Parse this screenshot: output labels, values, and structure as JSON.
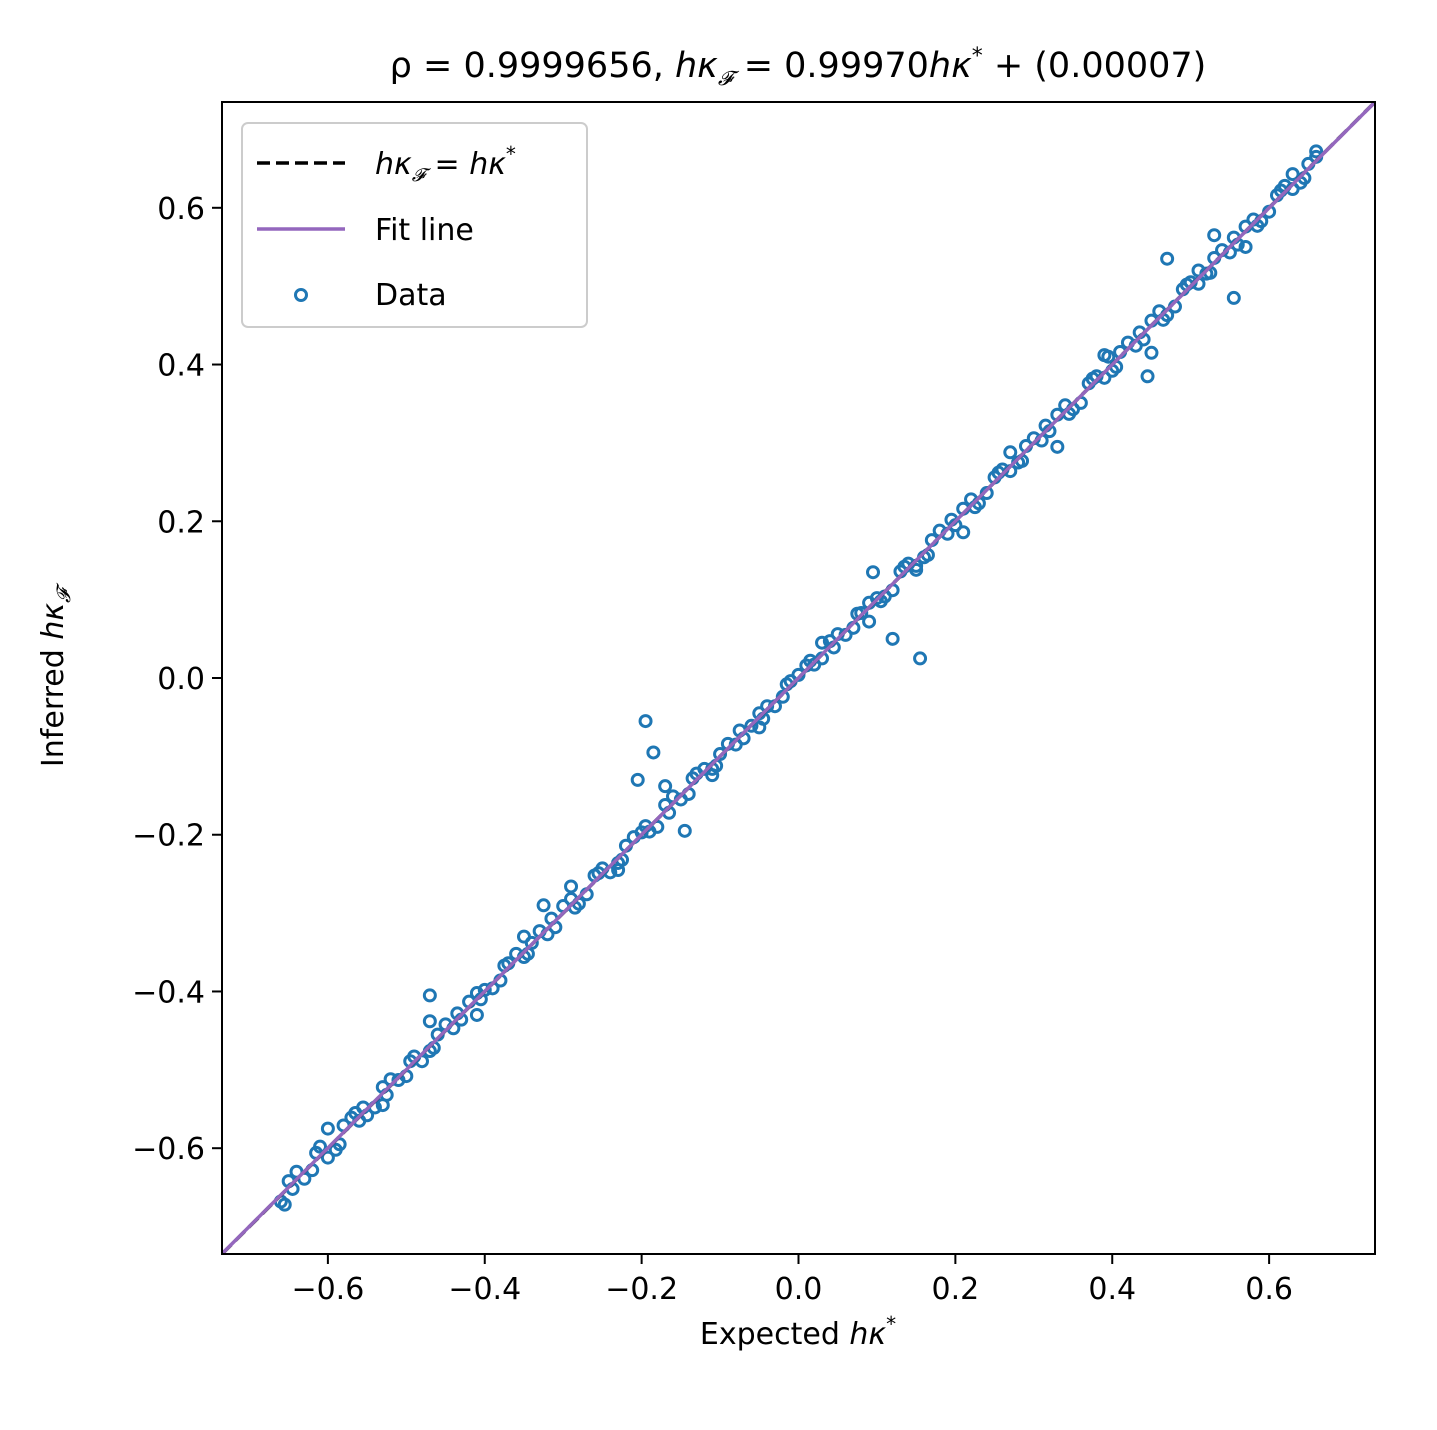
{
  "chart_data": {
    "type": "scatter",
    "title": {
      "prefix": "ρ = 0.9999656,   ",
      "lhs": "hκ",
      "lhs_sub": "𝓕",
      "mid": " = 0.99970",
      "rhs": "hκ",
      "rhs_sup": "*",
      "suffix": " + (0.00007)"
    },
    "xlabel": {
      "text": "Expected ",
      "math": "hκ",
      "sup": "*"
    },
    "ylabel": {
      "text": "Inferred ",
      "math": "hκ",
      "sub": "𝓕"
    },
    "xlim": [
      -0.735,
      0.735
    ],
    "ylim": [
      -0.735,
      0.735
    ],
    "xticks": [
      -0.6,
      -0.4,
      -0.2,
      0.0,
      0.2,
      0.4,
      0.6
    ],
    "xtick_labels": [
      "−0.6",
      "−0.4",
      "−0.2",
      "0.0",
      "0.2",
      "0.4",
      "0.6"
    ],
    "yticks": [
      -0.6,
      -0.4,
      -0.2,
      0.0,
      0.2,
      0.4,
      0.6
    ],
    "ytick_labels": [
      "−0.6",
      "−0.4",
      "−0.2",
      "0.0",
      "0.2",
      "0.4",
      "0.6"
    ],
    "grid": false,
    "legend_position": "upper-left",
    "series": [
      {
        "name": "hκ𝓕 = hκ*",
        "kind": "line",
        "style": "dashed",
        "color": "#000000",
        "x": [
          -0.735,
          0.735
        ],
        "y": [
          -0.735,
          0.735
        ]
      },
      {
        "name": "Fit line",
        "kind": "line",
        "style": "solid",
        "color": "#9467bd",
        "slope": 0.9997,
        "intercept": 7e-05,
        "x": [
          -0.735,
          0.735
        ],
        "y": [
          -0.73471,
          0.73485
        ]
      },
      {
        "name": "Data",
        "kind": "scatter",
        "marker": "open-circle",
        "color": "#1f77b4",
        "x": [
          -0.655,
          -0.64,
          -0.62,
          -0.6,
          -0.58,
          -0.56,
          -0.54,
          -0.52,
          -0.5,
          -0.48,
          -0.46,
          -0.44,
          -0.42,
          -0.4,
          -0.38,
          -0.36,
          -0.34,
          -0.32,
          -0.3,
          -0.28,
          -0.26,
          -0.24,
          -0.22,
          -0.2,
          -0.18,
          -0.16,
          -0.14,
          -0.12,
          -0.1,
          -0.08,
          -0.06,
          -0.04,
          -0.02,
          0.0,
          0.02,
          0.04,
          0.06,
          0.08,
          0.1,
          0.12,
          0.14,
          0.16,
          0.18,
          0.2,
          0.22,
          0.24,
          0.26,
          0.28,
          0.3,
          0.32,
          0.34,
          0.36,
          0.38,
          0.4,
          0.42,
          0.44,
          0.46,
          0.48,
          0.5,
          0.52,
          0.54,
          0.56,
          0.58,
          0.6,
          0.62,
          0.64,
          0.66,
          -0.65,
          -0.63,
          -0.61,
          -0.59,
          -0.57,
          -0.55,
          -0.53,
          -0.51,
          -0.49,
          -0.47,
          -0.45,
          -0.43,
          -0.41,
          -0.39,
          -0.37,
          -0.35,
          -0.33,
          -0.31,
          -0.29,
          -0.27,
          -0.25,
          -0.23,
          -0.21,
          -0.19,
          -0.17,
          -0.15,
          -0.13,
          -0.11,
          -0.09,
          -0.07,
          -0.05,
          -0.03,
          -0.01,
          0.01,
          0.03,
          0.05,
          0.07,
          0.09,
          0.11,
          0.13,
          0.15,
          0.17,
          0.19,
          0.21,
          0.23,
          0.25,
          0.27,
          0.29,
          0.31,
          0.33,
          0.35,
          0.37,
          0.39,
          0.41,
          0.43,
          0.45,
          0.47,
          0.49,
          0.51,
          0.53,
          0.55,
          0.57,
          0.59,
          0.61,
          0.63,
          0.65,
          -0.645,
          -0.615,
          -0.585,
          -0.555,
          -0.525,
          -0.495,
          -0.465,
          -0.435,
          -0.405,
          -0.375,
          -0.345,
          -0.315,
          -0.285,
          -0.255,
          -0.225,
          -0.195,
          -0.165,
          -0.135,
          -0.105,
          -0.075,
          -0.045,
          -0.015,
          0.015,
          0.045,
          0.075,
          0.105,
          0.135,
          0.165,
          0.195,
          0.225,
          0.255,
          0.285,
          0.315,
          0.345,
          0.375,
          0.405,
          0.435,
          0.465,
          0.495,
          0.525,
          0.555,
          0.585,
          0.615,
          0.645,
          -0.66,
          -0.6,
          -0.53,
          -0.47,
          -0.41,
          -0.35,
          -0.29,
          -0.23,
          -0.17,
          -0.11,
          -0.05,
          0.03,
          0.09,
          0.15,
          0.21,
          0.27,
          0.33,
          0.39,
          0.45,
          0.51,
          0.57,
          0.63,
          0.66,
          0.155,
          0.445,
          0.555,
          0.095,
          -0.195,
          -0.185,
          -0.205,
          -0.47,
          -0.325,
          -0.565,
          0.395,
          0.53,
          0.47,
          0.12,
          -0.145
        ],
        "y": [
          -0.672,
          -0.63,
          -0.628,
          -0.612,
          -0.571,
          -0.565,
          -0.548,
          -0.512,
          -0.508,
          -0.489,
          -0.455,
          -0.447,
          -0.413,
          -0.398,
          -0.386,
          -0.352,
          -0.338,
          -0.327,
          -0.291,
          -0.288,
          -0.252,
          -0.248,
          -0.214,
          -0.197,
          -0.19,
          -0.151,
          -0.148,
          -0.116,
          -0.097,
          -0.085,
          -0.061,
          -0.036,
          -0.024,
          0.004,
          0.017,
          0.047,
          0.055,
          0.083,
          0.102,
          0.112,
          0.146,
          0.154,
          0.188,
          0.195,
          0.228,
          0.236,
          0.266,
          0.275,
          0.306,
          0.315,
          0.348,
          0.351,
          0.385,
          0.392,
          0.428,
          0.432,
          0.468,
          0.474,
          0.505,
          0.516,
          0.546,
          0.553,
          0.585,
          0.595,
          0.628,
          0.632,
          0.665,
          -0.642,
          -0.639,
          -0.598,
          -0.602,
          -0.561,
          -0.558,
          -0.522,
          -0.513,
          -0.483,
          -0.476,
          -0.442,
          -0.436,
          -0.402,
          -0.396,
          -0.364,
          -0.356,
          -0.323,
          -0.318,
          -0.282,
          -0.276,
          -0.243,
          -0.236,
          -0.203,
          -0.196,
          -0.162,
          -0.155,
          -0.122,
          -0.116,
          -0.084,
          -0.077,
          -0.045,
          -0.036,
          -0.004,
          0.016,
          0.025,
          0.056,
          0.064,
          0.096,
          0.104,
          0.136,
          0.143,
          0.176,
          0.184,
          0.216,
          0.223,
          0.256,
          0.264,
          0.296,
          0.303,
          0.336,
          0.343,
          0.376,
          0.383,
          0.416,
          0.424,
          0.456,
          0.463,
          0.496,
          0.503,
          0.536,
          0.543,
          0.576,
          0.583,
          0.616,
          0.624,
          0.656,
          -0.652,
          -0.606,
          -0.595,
          -0.548,
          -0.532,
          -0.489,
          -0.472,
          -0.428,
          -0.41,
          -0.367,
          -0.352,
          -0.307,
          -0.293,
          -0.249,
          -0.232,
          -0.189,
          -0.172,
          -0.128,
          -0.112,
          -0.067,
          -0.052,
          -0.008,
          0.022,
          0.039,
          0.082,
          0.098,
          0.142,
          0.157,
          0.202,
          0.218,
          0.262,
          0.277,
          0.322,
          0.337,
          0.382,
          0.397,
          0.441,
          0.457,
          0.502,
          0.517,
          0.562,
          0.577,
          0.622,
          0.638,
          -0.668,
          -0.575,
          -0.545,
          -0.438,
          -0.43,
          -0.33,
          -0.266,
          -0.245,
          -0.138,
          -0.124,
          -0.063,
          0.045,
          0.072,
          0.138,
          0.186,
          0.288,
          0.295,
          0.412,
          0.415,
          0.52,
          0.55,
          0.643,
          0.672,
          0.025,
          0.385,
          0.485,
          0.135,
          -0.055,
          -0.095,
          -0.13,
          -0.405,
          -0.29,
          -0.555,
          0.41,
          0.565,
          0.535,
          0.05,
          -0.195
        ]
      }
    ]
  }
}
